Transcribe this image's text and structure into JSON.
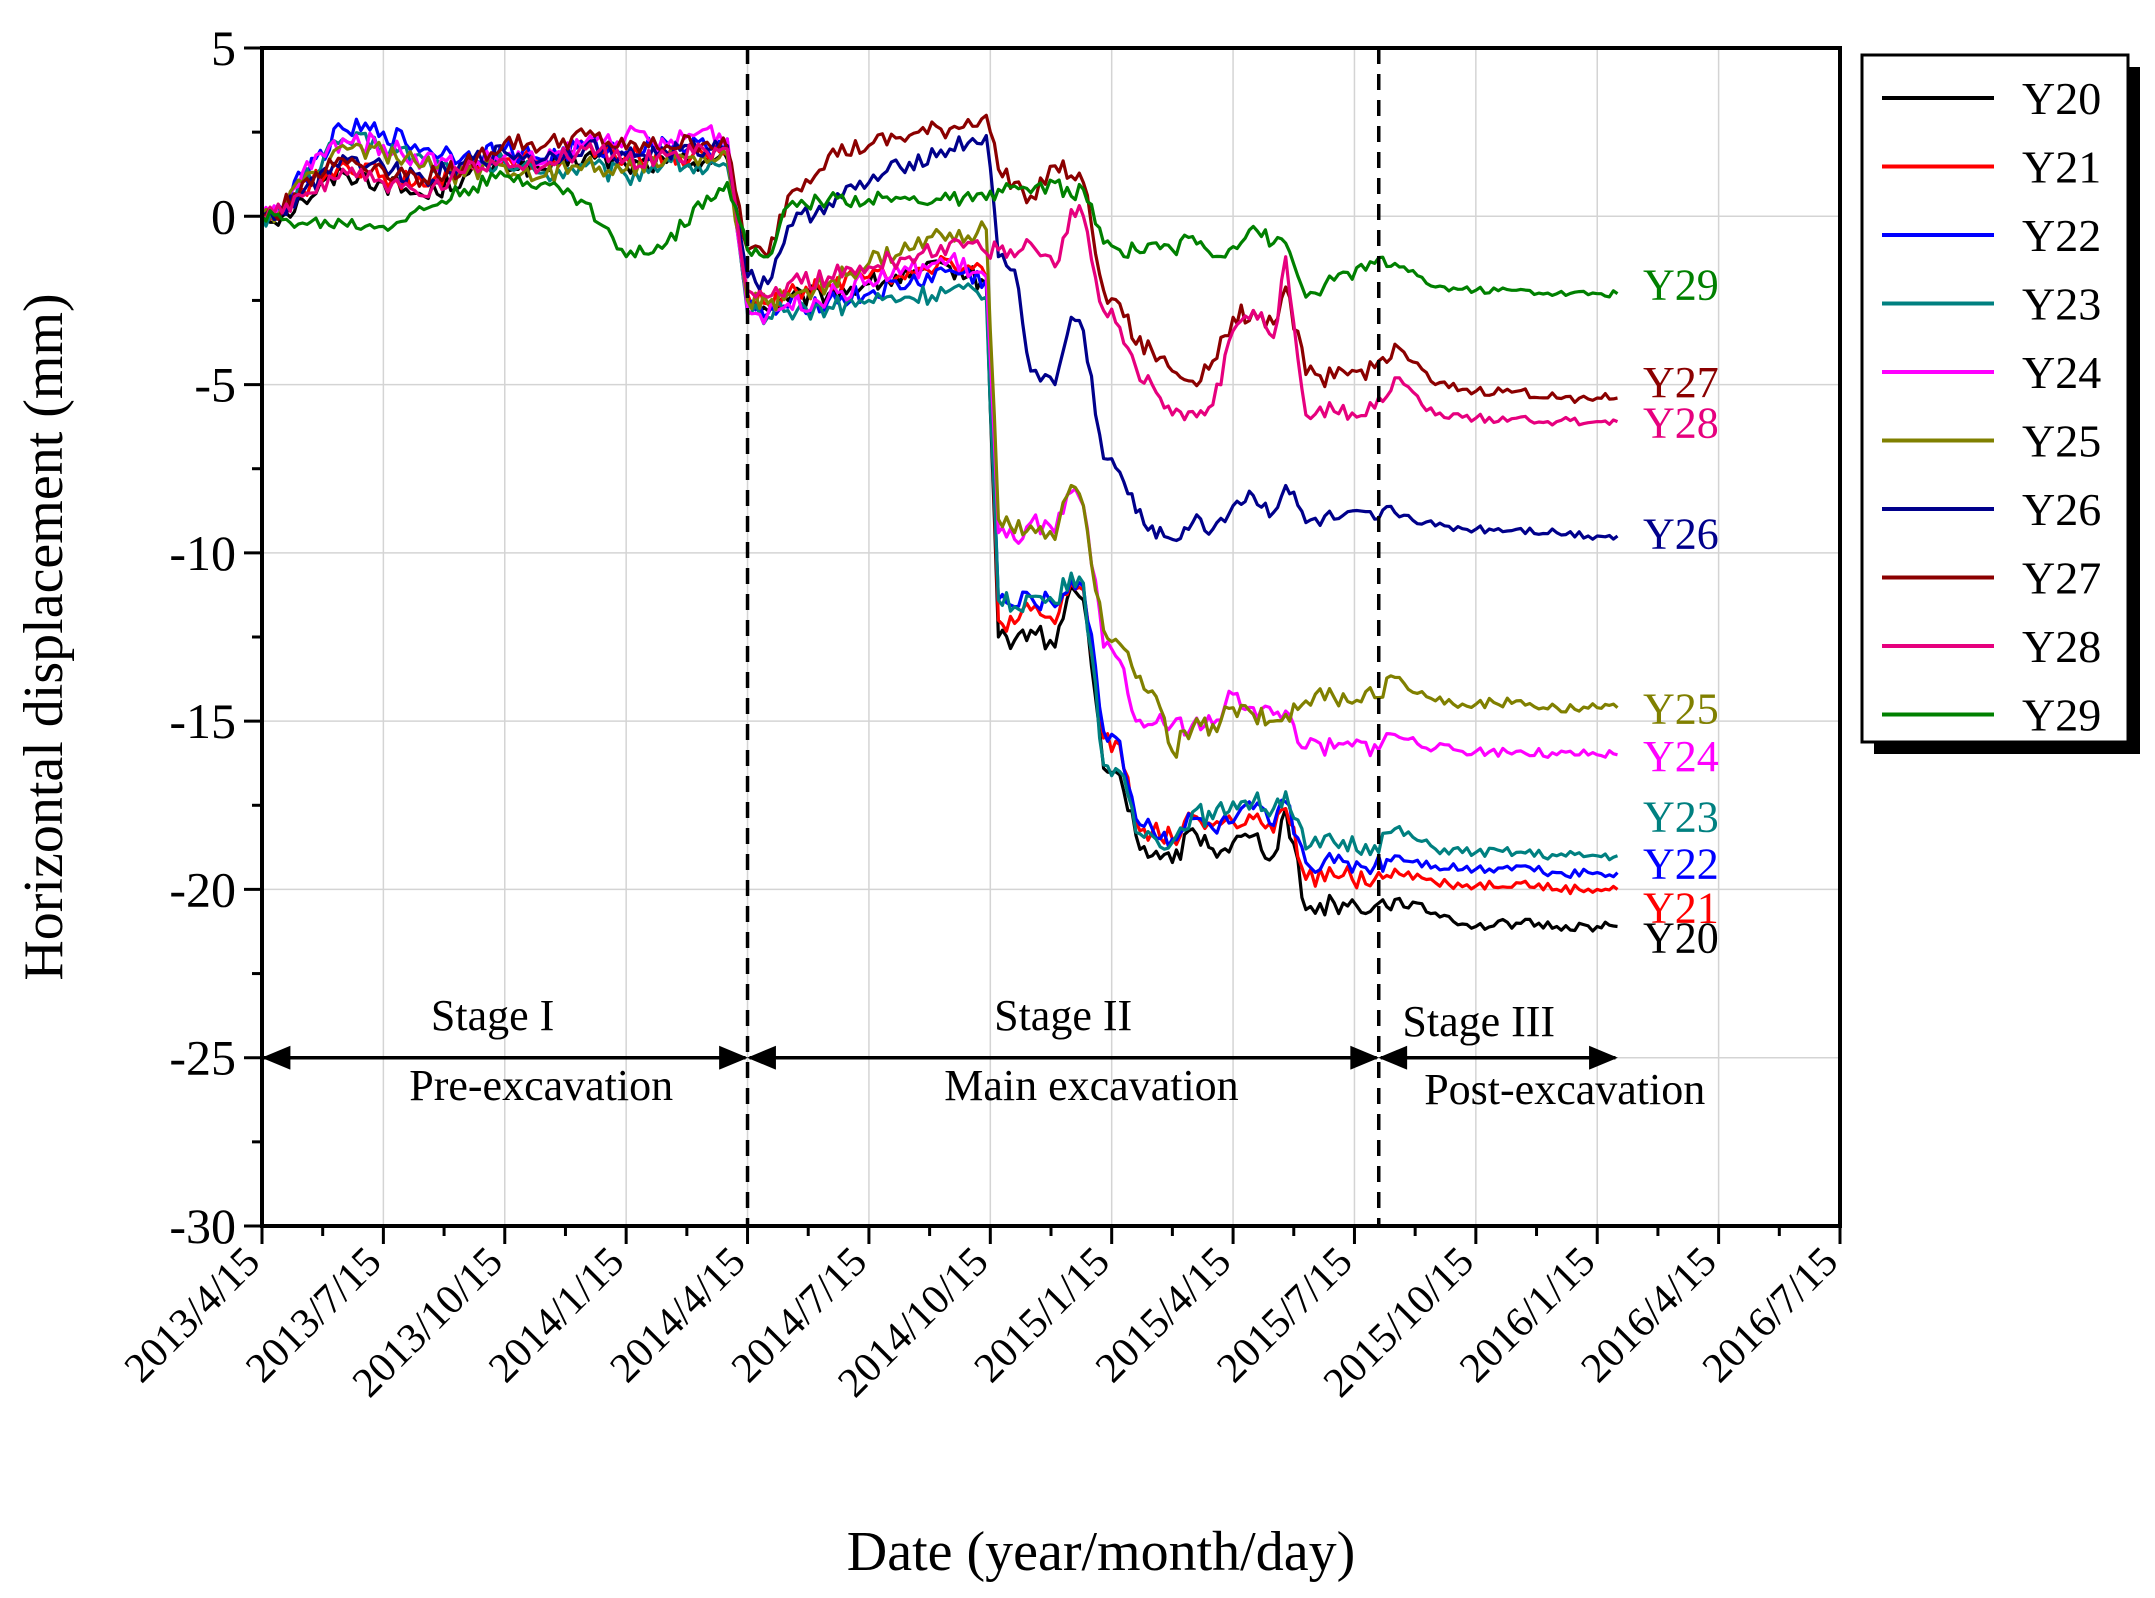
{
  "chart_data": {
    "type": "line",
    "xlabel": "Date (year/month/day)",
    "ylabel": "Horizontal displacement (mm)",
    "ylim": [
      -30,
      5
    ],
    "yticks": [
      5,
      0,
      -5,
      -10,
      -15,
      -20,
      -25,
      -30
    ],
    "ytick_labels": [
      "5",
      "0",
      "-5",
      "-10",
      "-15",
      "-20",
      "-25",
      "-30"
    ],
    "xlim_months": [
      0,
      39
    ],
    "xtick_months": [
      0,
      3,
      6,
      9,
      12,
      15,
      18,
      21,
      24,
      27,
      30,
      33,
      36,
      39
    ],
    "xtick_labels": [
      "2013/4/15",
      "2013/7/15",
      "2013/10/15",
      "2014/1/15",
      "2014/4/15",
      "2014/7/15",
      "2014/10/15",
      "2015/1/15",
      "2015/4/15",
      "2015/7/15",
      "2015/10/15",
      "2016/1/15",
      "2016/4/15",
      "2016/7/15"
    ],
    "grid": true,
    "legend_position": "outside-top-right",
    "stage_dividers_months": [
      12,
      27.6
    ],
    "stages": [
      {
        "name": "Stage I",
        "description": "Pre-excavation",
        "start_month": 0,
        "end_month": 12
      },
      {
        "name": "Stage II",
        "description": "Main excavation",
        "start_month": 12,
        "end_month": 27.6
      },
      {
        "name": "Stage III",
        "description": "Post-excavation",
        "start_month": 27.6,
        "end_month": 33.5
      }
    ],
    "series": [
      {
        "name": "Y20",
        "color": "#000000",
        "x": [
          0,
          0.5,
          1,
          2,
          3,
          4,
          5,
          6,
          7,
          8,
          9,
          10,
          11,
          11.5,
          12,
          12.5,
          13,
          14,
          15,
          16,
          17,
          17.9,
          18.2,
          18.6,
          19,
          19.6,
          20,
          20.3,
          20.8,
          21.2,
          21.6,
          22,
          22.5,
          23,
          23.5,
          24,
          24.5,
          25,
          25.3,
          25.8,
          26.5,
          27.5,
          28,
          29,
          30,
          31,
          32,
          33,
          33.5
        ],
        "y": [
          0,
          0,
          0.5,
          1.3,
          1,
          0.6,
          1.2,
          1.6,
          1.4,
          1.8,
          1.5,
          1.6,
          1.7,
          1.7,
          -2.5,
          -2.8,
          -2.5,
          -2.3,
          -2,
          -1.8,
          -1.5,
          -2,
          -12.5,
          -12.6,
          -12.3,
          -12.8,
          -11,
          -11.4,
          -16.4,
          -16.6,
          -18.4,
          -19.0,
          -19.2,
          -18.2,
          -18.8,
          -18.6,
          -18.4,
          -19.0,
          -17.6,
          -20.6,
          -20.4,
          -20.5,
          -20.3,
          -20.7,
          -21.1,
          -21.0,
          -21.1,
          -21.1,
          -21.1
        ]
      },
      {
        "name": "Y21",
        "color": "#ff0000",
        "x": [
          0,
          0.5,
          1,
          2,
          3,
          4,
          5,
          6,
          7,
          8,
          9,
          10,
          11,
          11.5,
          12,
          12.5,
          13,
          14,
          15,
          16,
          17,
          17.9,
          18.2,
          18.6,
          19,
          19.6,
          20,
          20.3,
          20.8,
          21.2,
          21.6,
          22,
          22.5,
          23,
          23.5,
          24,
          24.5,
          25,
          25.3,
          25.8,
          26.5,
          27.5,
          28,
          29,
          30,
          31,
          32,
          33,
          33.5
        ],
        "y": [
          0,
          0.1,
          0.8,
          1.6,
          1.2,
          0.9,
          1.4,
          1.7,
          1.6,
          2.0,
          1.8,
          1.7,
          1.8,
          1.9,
          -2.3,
          -2.6,
          -2.3,
          -2.0,
          -1.8,
          -1.6,
          -1.3,
          -1.8,
          -12.0,
          -12.1,
          -11.7,
          -12.1,
          -10.9,
          -11.1,
          -15.5,
          -15.7,
          -18.0,
          -18.3,
          -18.5,
          -17.8,
          -18.1,
          -18.0,
          -17.9,
          -18.3,
          -17.6,
          -19.7,
          -19.6,
          -19.7,
          -19.4,
          -19.8,
          -19.9,
          -19.8,
          -20.0,
          -20.0,
          -20.0
        ]
      },
      {
        "name": "Y22",
        "color": "#0000ff",
        "x": [
          0,
          0.5,
          1,
          2,
          3,
          4,
          5,
          6,
          7,
          8,
          9,
          10,
          11,
          11.5,
          12,
          12.5,
          13,
          14,
          15,
          16,
          17,
          17.9,
          18.2,
          18.6,
          19,
          19.6,
          20,
          20.3,
          20.8,
          21.2,
          21.6,
          22,
          22.5,
          23,
          23.5,
          24,
          24.5,
          25,
          25.3,
          25.8,
          26.5,
          27.5,
          28,
          29,
          30,
          31,
          32,
          33,
          33.5
        ],
        "y": [
          0,
          0.2,
          1.2,
          2.6,
          2.5,
          2.0,
          1.8,
          2.0,
          1.7,
          2.1,
          1.9,
          2.2,
          2.0,
          2.3,
          -2.7,
          -2.9,
          -2.7,
          -2.5,
          -2.3,
          -2.0,
          -1.6,
          -1.9,
          -11.4,
          -11.6,
          -11.3,
          -11.6,
          -10.8,
          -11.0,
          -15.3,
          -15.6,
          -17.9,
          -18.2,
          -18.5,
          -17.9,
          -18.2,
          -18.0,
          -17.6,
          -18.1,
          -17.4,
          -19.2,
          -19.2,
          -19.3,
          -19.0,
          -19.3,
          -19.4,
          -19.3,
          -19.5,
          -19.5,
          -19.5
        ]
      },
      {
        "name": "Y23",
        "color": "#008080",
        "x": [
          0,
          0.5,
          1,
          2,
          3,
          4,
          5,
          6,
          7,
          8,
          9,
          10,
          11,
          11.5,
          12,
          12.5,
          13,
          14,
          15,
          16,
          17,
          17.9,
          18.2,
          18.6,
          19,
          19.6,
          20,
          20.3,
          20.8,
          21.2,
          21.6,
          22,
          22.5,
          23,
          23.5,
          24,
          24.5,
          25,
          25.3,
          25.8,
          26.5,
          27.5,
          28,
          29,
          30,
          31,
          32,
          33,
          33.5
        ],
        "y": [
          0,
          0.1,
          1.0,
          2.3,
          2.1,
          1.7,
          1.3,
          1.6,
          1.3,
          1.5,
          1.2,
          1.7,
          1.4,
          1.5,
          -2.9,
          -3.0,
          -2.8,
          -2.7,
          -2.5,
          -2.4,
          -2.2,
          -2.4,
          -11.4,
          -11.6,
          -11.3,
          -11.5,
          -10.6,
          -10.9,
          -16.3,
          -16.5,
          -18.3,
          -18.4,
          -18.6,
          -17.7,
          -17.9,
          -17.4,
          -17.4,
          -17.6,
          -17.1,
          -18.8,
          -18.6,
          -18.7,
          -18.2,
          -18.8,
          -18.9,
          -18.9,
          -19.0,
          -19.0,
          -19.0
        ]
      },
      {
        "name": "Y24",
        "color": "#ff00ff",
        "x": [
          0,
          0.5,
          1,
          2,
          3,
          4,
          5,
          6,
          7,
          8,
          9,
          10,
          11,
          11.5,
          12,
          12.5,
          13,
          14,
          15,
          16,
          17,
          17.9,
          18.2,
          18.6,
          19,
          19.6,
          20,
          20.3,
          20.8,
          21.2,
          21.6,
          22,
          22.5,
          23,
          23.5,
          24,
          24.5,
          25,
          25.3,
          25.8,
          26.5,
          27.5,
          28,
          29,
          30,
          31,
          32,
          33,
          33.5
        ],
        "y": [
          0,
          0.1,
          1.3,
          2.3,
          2.1,
          1.7,
          1.5,
          1.8,
          1.6,
          2.2,
          2.4,
          2.1,
          2.6,
          2.3,
          -2.8,
          -2.9,
          -2.6,
          -2.4,
          -1.9,
          -1.6,
          -1.3,
          -1.8,
          -9.4,
          -9.6,
          -9.1,
          -9.4,
          -8.2,
          -8.6,
          -12.8,
          -13.2,
          -15.0,
          -15.1,
          -15.1,
          -15.1,
          -15.1,
          -14.2,
          -14.6,
          -14.8,
          -14.7,
          -15.8,
          -15.8,
          -15.7,
          -15.4,
          -15.8,
          -15.9,
          -15.9,
          -16.0,
          -16.0,
          -16.0
        ]
      },
      {
        "name": "Y25",
        "color": "#808000",
        "x": [
          0,
          0.5,
          1,
          2,
          3,
          4,
          5,
          6,
          7,
          8,
          9,
          10,
          11,
          11.5,
          12,
          12.5,
          13,
          14,
          15,
          16,
          17,
          17.9,
          18.2,
          18.6,
          19,
          19.6,
          20,
          20.3,
          20.8,
          21.2,
          21.6,
          22,
          22.5,
          23,
          23.5,
          24,
          24.5,
          25,
          25.3,
          25.8,
          26.5,
          27.5,
          28,
          29,
          30,
          31,
          32,
          33,
          33.5
        ],
        "y": [
          0,
          0.2,
          1.0,
          2.1,
          1.9,
          1.5,
          1.2,
          1.5,
          1.2,
          1.6,
          1.4,
          1.7,
          1.6,
          1.8,
          -2.5,
          -2.6,
          -2.3,
          -2.0,
          -1.4,
          -1.0,
          -0.5,
          -0.4,
          -9.0,
          -9.4,
          -9.2,
          -9.6,
          -8.0,
          -8.6,
          -12.3,
          -12.7,
          -13.7,
          -14.1,
          -15.9,
          -15.2,
          -15.1,
          -14.6,
          -14.8,
          -15.0,
          -14.8,
          -14.4,
          -14.3,
          -14.3,
          -13.7,
          -14.4,
          -14.5,
          -14.4,
          -14.6,
          -14.6,
          -14.6
        ]
      },
      {
        "name": "Y26",
        "color": "#00008b",
        "x": [
          0,
          0.5,
          1,
          2,
          3,
          4,
          5,
          6,
          7,
          8,
          9,
          10,
          11,
          11.5,
          12,
          12.5,
          13,
          14,
          15,
          16,
          17,
          17.9,
          18.2,
          18.6,
          19,
          19.6,
          20,
          20.3,
          20.8,
          21.2,
          21.6,
          22,
          22.5,
          23,
          23.5,
          24,
          24.5,
          25,
          25.3,
          25.8,
          26.5,
          27.5,
          28,
          29,
          30,
          31,
          32,
          33,
          33.5
        ],
        "y": [
          0,
          0.1,
          0.7,
          1.8,
          1.5,
          1.1,
          1.6,
          1.9,
          1.7,
          2.1,
          1.8,
          1.9,
          2.0,
          2.1,
          -1.8,
          -2.0,
          -0.3,
          0.4,
          1.0,
          1.6,
          2.0,
          2.4,
          -1.2,
          -1.6,
          -4.6,
          -5.0,
          -3.0,
          -3.4,
          -7.2,
          -7.6,
          -8.8,
          -9.2,
          -9.6,
          -9.1,
          -9.3,
          -8.6,
          -8.3,
          -8.8,
          -8.0,
          -9.1,
          -9.0,
          -9.0,
          -8.8,
          -9.2,
          -9.3,
          -9.3,
          -9.4,
          -9.5,
          -9.5
        ]
      },
      {
        "name": "Y27",
        "color": "#8b0000",
        "x": [
          0,
          0.5,
          1,
          2,
          3,
          4,
          5,
          6,
          7,
          8,
          9,
          10,
          11,
          11.5,
          12,
          12.5,
          13,
          14,
          15,
          16,
          17,
          17.9,
          18.2,
          18.6,
          19,
          19.6,
          20,
          20.3,
          20.8,
          21.2,
          21.6,
          22,
          22.5,
          23,
          23.5,
          24,
          24.5,
          25,
          25.3,
          25.8,
          26.5,
          27.5,
          28,
          29,
          30,
          31,
          32,
          33,
          33.5
        ],
        "y": [
          0,
          0.2,
          1.0,
          1.7,
          1.4,
          1.1,
          1.5,
          2.2,
          2.1,
          2.4,
          2.0,
          2.1,
          2.2,
          2.0,
          -1.0,
          -1.2,
          0.6,
          1.8,
          2.1,
          2.4,
          2.6,
          3.0,
          1.4,
          1.0,
          0.6,
          1.5,
          1.2,
          1.0,
          -2.2,
          -2.6,
          -3.8,
          -4.0,
          -4.6,
          -4.9,
          -4.3,
          -3.0,
          -2.8,
          -3.2,
          -2.1,
          -4.7,
          -4.8,
          -4.5,
          -3.8,
          -5.0,
          -5.2,
          -5.2,
          -5.4,
          -5.4,
          -5.4
        ]
      },
      {
        "name": "Y28",
        "color": "#e6007e",
        "x": [
          0,
          0.5,
          1,
          2,
          3,
          4,
          5,
          6,
          7,
          8,
          9,
          10,
          11,
          11.5,
          12,
          12.5,
          13,
          14,
          15,
          16,
          17,
          17.9,
          18.2,
          18.6,
          19,
          19.6,
          20,
          20.3,
          20.8,
          21.2,
          21.6,
          22,
          22.5,
          23,
          23.5,
          24,
          24.5,
          25,
          25.3,
          25.8,
          26.5,
          27.5,
          28,
          29,
          30,
          31,
          32,
          33,
          33.5
        ],
        "y": [
          0,
          0.1,
          0.6,
          1.4,
          1.0,
          0.6,
          1.3,
          1.7,
          1.5,
          2.0,
          1.7,
          1.8,
          1.9,
          2.0,
          -2.2,
          -2.4,
          -2.0,
          -1.8,
          -1.5,
          -1.2,
          -0.8,
          -1.1,
          -1.0,
          -1.2,
          -0.8,
          -1.5,
          0.2,
          0,
          -2.8,
          -3.3,
          -4.5,
          -5.0,
          -5.9,
          -5.8,
          -5.6,
          -3.4,
          -2.8,
          -3.6,
          -1.2,
          -5.9,
          -5.8,
          -5.7,
          -4.8,
          -5.9,
          -6.0,
          -6.0,
          -6.1,
          -6.1,
          -6.1
        ]
      },
      {
        "name": "Y29",
        "color": "#008000",
        "x": [
          0,
          0.5,
          1,
          2,
          3,
          4,
          5,
          6,
          7,
          8,
          9,
          10,
          11,
          11.5,
          12,
          12.5,
          13,
          14,
          15,
          16,
          17,
          17.9,
          18.2,
          18.6,
          19,
          19.6,
          20,
          20.3,
          20.8,
          21.2,
          21.6,
          22,
          22.5,
          23,
          23.5,
          24,
          24.5,
          25,
          25.3,
          25.8,
          26.5,
          27.5,
          28,
          29,
          30,
          31,
          32,
          33,
          33.5
        ],
        "y": [
          0,
          -0.1,
          -0.2,
          -0.2,
          -0.3,
          0.2,
          0.8,
          1.2,
          1.0,
          0.4,
          -1.2,
          -0.8,
          0.6,
          1.0,
          -1.0,
          -1.2,
          0.3,
          0.5,
          0.5,
          0.5,
          0.5,
          0.5,
          0.8,
          0.9,
          0.7,
          1.0,
          0.6,
          0.8,
          -0.8,
          -1.0,
          -1.0,
          -0.8,
          -1.0,
          -0.6,
          -1.2,
          -0.9,
          -0.3,
          -0.8,
          -0.8,
          -2.4,
          -1.9,
          -1.4,
          -1.4,
          -2.1,
          -2.2,
          -2.2,
          -2.3,
          -2.3,
          -2.3
        ]
      }
    ]
  }
}
